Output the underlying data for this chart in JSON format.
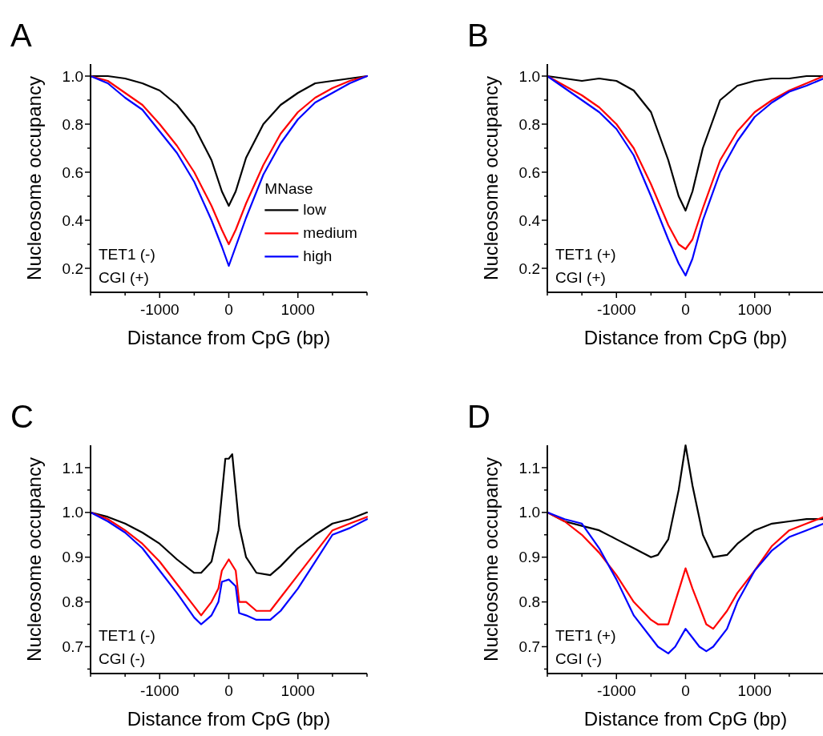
{
  "chart_data": [
    {
      "type": "line",
      "title": "A",
      "xlabel": "Distance from CpG (bp)",
      "ylabel": "Nucleosome occupancy",
      "annotations": [
        "TET1 (-)",
        "CGI (+)"
      ],
      "legend_title": "MNase",
      "legend": "bottom right",
      "xlim": [
        -2000,
        2000
      ],
      "xticks": [
        {
          "value": -2000,
          "label": null
        },
        {
          "value": -1500,
          "label": null
        },
        -1000,
        {
          "value": -500,
          "label": null
        },
        0,
        {
          "value": 500,
          "label": null
        },
        1000,
        {
          "value": 1500,
          "label": null
        },
        {
          "value": 2000,
          "label": null
        }
      ],
      "ylim": [
        0.1,
        1.05
      ],
      "yticks": [
        0.2,
        {
          "value": 0.3,
          "label": null
        },
        0.4,
        {
          "value": 0.5,
          "label": null
        },
        0.6,
        {
          "value": 0.7,
          "label": null
        },
        0.8,
        {
          "value": 0.9,
          "label": null
        },
        {
          "value": 1,
          "label": "1.0"
        }
      ],
      "series": [
        {
          "name": "low",
          "color": "#000000",
          "x": [
            -2000,
            -1750,
            -1500,
            -1250,
            -1000,
            -750,
            -500,
            -250,
            -100,
            0,
            100,
            250,
            500,
            750,
            1000,
            1250,
            1500,
            1750,
            2000
          ],
          "values": [
            1.0,
            1.0,
            0.99,
            0.97,
            0.94,
            0.88,
            0.79,
            0.65,
            0.52,
            0.46,
            0.52,
            0.66,
            0.8,
            0.88,
            0.93,
            0.97,
            0.98,
            0.99,
            1.0
          ]
        },
        {
          "name": "medium",
          "color": "#ff0000",
          "x": [
            -2000,
            -1750,
            -1500,
            -1250,
            -1000,
            -750,
            -500,
            -250,
            -100,
            0,
            100,
            250,
            500,
            750,
            1000,
            1250,
            1500,
            1750,
            2000
          ],
          "values": [
            1.0,
            0.98,
            0.93,
            0.88,
            0.8,
            0.71,
            0.6,
            0.46,
            0.36,
            0.3,
            0.36,
            0.47,
            0.63,
            0.76,
            0.85,
            0.91,
            0.95,
            0.98,
            1.0
          ]
        },
        {
          "name": "high",
          "color": "#0000ff",
          "x": [
            -2000,
            -1750,
            -1500,
            -1250,
            -1000,
            -750,
            -500,
            -250,
            -100,
            0,
            100,
            250,
            500,
            750,
            1000,
            1250,
            1500,
            1750,
            2000
          ],
          "values": [
            1.0,
            0.97,
            0.91,
            0.86,
            0.77,
            0.68,
            0.56,
            0.4,
            0.29,
            0.21,
            0.29,
            0.41,
            0.59,
            0.72,
            0.82,
            0.89,
            0.93,
            0.97,
            1.0
          ]
        }
      ]
    },
    {
      "type": "line",
      "title": "B",
      "xlabel": "Distance from CpG (bp)",
      "ylabel": "Nucleosome occupancy",
      "annotations": [
        "TET1 (+)",
        "CGI (+)"
      ],
      "xlim": [
        -2000,
        2000
      ],
      "xticks": [
        {
          "value": -2000,
          "label": null
        },
        {
          "value": -1500,
          "label": null
        },
        -1000,
        {
          "value": -500,
          "label": null
        },
        0,
        {
          "value": 500,
          "label": null
        },
        1000,
        {
          "value": 1500,
          "label": null
        },
        {
          "value": 2000,
          "label": null
        }
      ],
      "ylim": [
        0.1,
        1.05
      ],
      "yticks": [
        0.2,
        {
          "value": 0.3,
          "label": null
        },
        0.4,
        {
          "value": 0.5,
          "label": null
        },
        0.6,
        {
          "value": 0.7,
          "label": null
        },
        0.8,
        {
          "value": 0.9,
          "label": null
        },
        {
          "value": 1,
          "label": "1.0"
        }
      ],
      "series": [
        {
          "color": "#000000",
          "x": [
            -2000,
            -1750,
            -1500,
            -1250,
            -1000,
            -750,
            -500,
            -250,
            -100,
            0,
            100,
            250,
            500,
            750,
            1000,
            1250,
            1500,
            1750,
            2000
          ],
          "values": [
            1.0,
            0.99,
            0.98,
            0.99,
            0.98,
            0.94,
            0.85,
            0.65,
            0.5,
            0.44,
            0.52,
            0.7,
            0.9,
            0.96,
            0.98,
            0.99,
            0.99,
            1.0,
            1.0
          ]
        },
        {
          "color": "#ff0000",
          "x": [
            -2000,
            -1750,
            -1500,
            -1250,
            -1000,
            -750,
            -500,
            -250,
            -100,
            0,
            100,
            250,
            500,
            750,
            1000,
            1250,
            1500,
            1750,
            2000
          ],
          "values": [
            1.0,
            0.96,
            0.92,
            0.87,
            0.8,
            0.7,
            0.55,
            0.38,
            0.3,
            0.28,
            0.32,
            0.45,
            0.65,
            0.77,
            0.85,
            0.9,
            0.94,
            0.97,
            1.0
          ]
        },
        {
          "color": "#0000ff",
          "x": [
            -2000,
            -1750,
            -1500,
            -1250,
            -1000,
            -750,
            -500,
            -250,
            -100,
            0,
            100,
            250,
            500,
            750,
            1000,
            1250,
            1500,
            1750,
            2000
          ],
          "values": [
            1.0,
            0.95,
            0.9,
            0.85,
            0.78,
            0.67,
            0.5,
            0.32,
            0.22,
            0.17,
            0.24,
            0.4,
            0.6,
            0.73,
            0.83,
            0.89,
            0.935,
            0.96,
            0.99
          ]
        }
      ]
    },
    {
      "type": "line",
      "title": "C",
      "xlabel": "Distance from CpG (bp)",
      "ylabel": "Nucleosome occupancy",
      "annotations": [
        "TET1 (-)",
        "CGI (-)"
      ],
      "xlim": [
        -2000,
        2000
      ],
      "xticks": [
        {
          "value": -2000,
          "label": null
        },
        {
          "value": -1500,
          "label": null
        },
        -1000,
        {
          "value": -500,
          "label": null
        },
        0,
        {
          "value": 500,
          "label": null
        },
        1000,
        {
          "value": 1500,
          "label": null
        },
        {
          "value": 2000,
          "label": null
        }
      ],
      "ylim": [
        0.64,
        1.15
      ],
      "yticks": [
        {
          "value": 0.65,
          "label": null
        },
        0.7,
        {
          "value": 0.75,
          "label": null
        },
        0.8,
        {
          "value": 0.85,
          "label": null
        },
        0.9,
        {
          "value": 0.95,
          "label": null
        },
        {
          "value": 1,
          "label": "1.0"
        },
        {
          "value": 1.05,
          "label": null
        },
        1.1
      ],
      "series": [
        {
          "color": "#000000",
          "x": [
            -2000,
            -1750,
            -1500,
            -1250,
            -1000,
            -750,
            -500,
            -400,
            -250,
            -150,
            -100,
            -50,
            0,
            50,
            100,
            150,
            250,
            400,
            600,
            750,
            1000,
            1250,
            1500,
            1750,
            2000
          ],
          "values": [
            1.0,
            0.99,
            0.975,
            0.955,
            0.93,
            0.895,
            0.865,
            0.865,
            0.89,
            0.96,
            1.04,
            1.12,
            1.12,
            1.13,
            1.05,
            0.97,
            0.9,
            0.865,
            0.86,
            0.88,
            0.92,
            0.95,
            0.975,
            0.985,
            1.0
          ]
        },
        {
          "color": "#ff0000",
          "x": [
            -2000,
            -1750,
            -1500,
            -1250,
            -1000,
            -750,
            -500,
            -400,
            -250,
            -150,
            -100,
            0,
            100,
            150,
            250,
            400,
            600,
            750,
            1000,
            1250,
            1500,
            1750,
            2000
          ],
          "values": [
            1.0,
            0.985,
            0.96,
            0.93,
            0.89,
            0.84,
            0.79,
            0.77,
            0.8,
            0.83,
            0.87,
            0.895,
            0.87,
            0.8,
            0.8,
            0.78,
            0.78,
            0.81,
            0.86,
            0.91,
            0.96,
            0.975,
            0.99
          ]
        },
        {
          "color": "#0000ff",
          "x": [
            -2000,
            -1750,
            -1500,
            -1250,
            -1000,
            -750,
            -500,
            -400,
            -250,
            -150,
            -100,
            0,
            100,
            150,
            250,
            400,
            600,
            750,
            1000,
            1250,
            1500,
            1750,
            2000
          ],
          "values": [
            1.0,
            0.98,
            0.955,
            0.92,
            0.87,
            0.82,
            0.765,
            0.75,
            0.77,
            0.8,
            0.845,
            0.85,
            0.835,
            0.775,
            0.77,
            0.76,
            0.76,
            0.78,
            0.83,
            0.89,
            0.95,
            0.965,
            0.985
          ]
        }
      ]
    },
    {
      "type": "line",
      "title": "D",
      "xlabel": "Distance from CpG (bp)",
      "ylabel": "Nucleosome occupancy",
      "annotations": [
        "TET1 (+)",
        "CGI (-)"
      ],
      "xlim": [
        -2000,
        2000
      ],
      "xticks": [
        {
          "value": -2000,
          "label": null
        },
        {
          "value": -1500,
          "label": null
        },
        -1000,
        {
          "value": -500,
          "label": null
        },
        0,
        {
          "value": 500,
          "label": null
        },
        1000,
        {
          "value": 1500,
          "label": null
        },
        {
          "value": 2000,
          "label": null
        }
      ],
      "ylim": [
        0.64,
        1.15
      ],
      "yticks": [
        {
          "value": 0.65,
          "label": null
        },
        0.7,
        {
          "value": 0.75,
          "label": null
        },
        0.8,
        {
          "value": 0.85,
          "label": null
        },
        0.9,
        {
          "value": 0.95,
          "label": null
        },
        {
          "value": 1,
          "label": "1.0"
        },
        {
          "value": 1.05,
          "label": null
        },
        1.1
      ],
      "series": [
        {
          "color": "#000000",
          "x": [
            -2000,
            -1750,
            -1500,
            -1250,
            -1000,
            -750,
            -500,
            -400,
            -250,
            -100,
            0,
            100,
            250,
            400,
            600,
            750,
            1000,
            1250,
            1500,
            1750,
            2000
          ],
          "values": [
            1.0,
            0.98,
            0.97,
            0.96,
            0.94,
            0.92,
            0.9,
            0.905,
            0.94,
            1.05,
            1.15,
            1.06,
            0.95,
            0.9,
            0.905,
            0.93,
            0.96,
            0.975,
            0.98,
            0.985,
            0.985
          ]
        },
        {
          "color": "#ff0000",
          "x": [
            -2000,
            -1750,
            -1500,
            -1250,
            -1000,
            -750,
            -500,
            -400,
            -250,
            -150,
            0,
            100,
            200,
            300,
            400,
            600,
            750,
            1000,
            1250,
            1500,
            1750,
            2000
          ],
          "values": [
            1.0,
            0.98,
            0.95,
            0.91,
            0.86,
            0.8,
            0.76,
            0.75,
            0.75,
            0.8,
            0.875,
            0.83,
            0.79,
            0.75,
            0.74,
            0.78,
            0.82,
            0.87,
            0.925,
            0.96,
            0.975,
            0.99
          ]
        },
        {
          "color": "#0000ff",
          "x": [
            -2000,
            -1750,
            -1500,
            -1250,
            -1000,
            -750,
            -500,
            -400,
            -250,
            -150,
            0,
            100,
            200,
            300,
            400,
            600,
            750,
            1000,
            1250,
            1500,
            1750,
            2000
          ],
          "values": [
            1.0,
            0.985,
            0.975,
            0.92,
            0.85,
            0.77,
            0.72,
            0.7,
            0.685,
            0.7,
            0.74,
            0.72,
            0.7,
            0.69,
            0.7,
            0.74,
            0.8,
            0.87,
            0.915,
            0.945,
            0.96,
            0.975
          ]
        }
      ]
    }
  ]
}
